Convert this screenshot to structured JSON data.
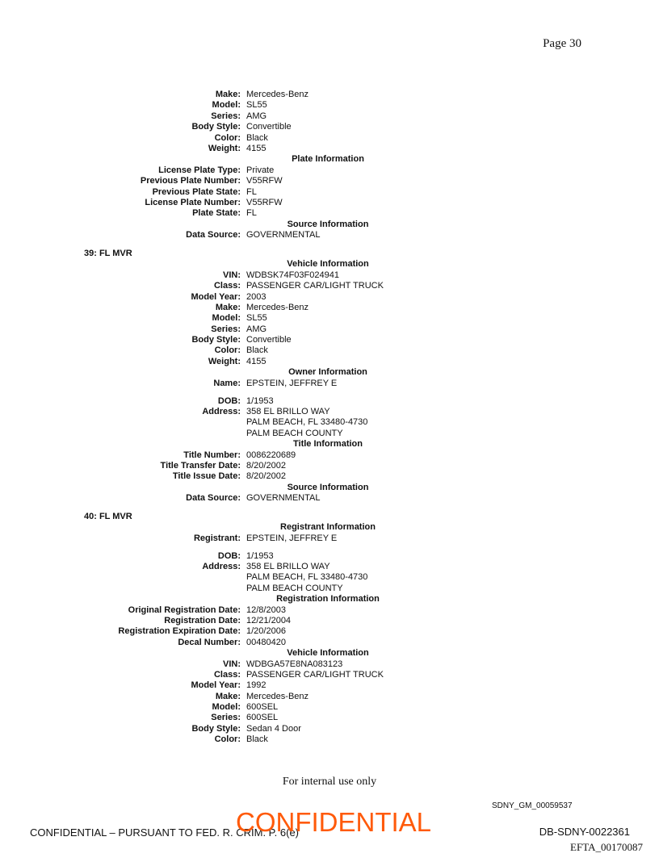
{
  "page_number": "Page 30",
  "lines": [
    {
      "t": "row",
      "label": "Make:",
      "value": "Mercedes-Benz"
    },
    {
      "t": "row",
      "label": "Model:",
      "value": "SL55"
    },
    {
      "t": "row",
      "label": "Series:",
      "value": "AMG"
    },
    {
      "t": "row",
      "label": "Body Style:",
      "value": "Convertible"
    },
    {
      "t": "row",
      "label": "Color:",
      "value": "Black"
    },
    {
      "t": "row",
      "label": "Weight:",
      "value": "4155"
    },
    {
      "t": "hdr",
      "text": "Plate Information"
    },
    {
      "t": "row",
      "label": "License Plate Type:",
      "value": "Private"
    },
    {
      "t": "row",
      "label": "Previous Plate Number:",
      "value": "V55RFW"
    },
    {
      "t": "row",
      "label": "Previous Plate State:",
      "value": "FL"
    },
    {
      "t": "row",
      "label": "License Plate Number:",
      "value": "V55RFW"
    },
    {
      "t": "row",
      "label": "Plate State:",
      "value": "FL"
    },
    {
      "t": "hdr",
      "text": "Source Information"
    },
    {
      "t": "row",
      "label": "Data Source:",
      "value": "GOVERNMENTAL"
    },
    {
      "t": "gap"
    },
    {
      "t": "sec",
      "text": "39: FL MVR"
    },
    {
      "t": "hdr",
      "text": "Vehicle Information"
    },
    {
      "t": "row",
      "label": "VIN:",
      "value": "WDBSK74F03F024941"
    },
    {
      "t": "row",
      "label": "Class:",
      "value": "PASSENGER CAR/LIGHT TRUCK"
    },
    {
      "t": "row",
      "label": "Model Year:",
      "value": "2003"
    },
    {
      "t": "row",
      "label": "Make:",
      "value": "Mercedes-Benz"
    },
    {
      "t": "row",
      "label": "Model:",
      "value": "SL55"
    },
    {
      "t": "row",
      "label": "Series:",
      "value": "AMG"
    },
    {
      "t": "row",
      "label": "Body Style:",
      "value": "Convertible"
    },
    {
      "t": "row",
      "label": "Color:",
      "value": "Black"
    },
    {
      "t": "row",
      "label": "Weight:",
      "value": "4155"
    },
    {
      "t": "hdr",
      "text": "Owner Information"
    },
    {
      "t": "row",
      "label": "Name:",
      "value": "EPSTEIN, JEFFREY E"
    },
    {
      "t": "gap2"
    },
    {
      "t": "row",
      "label": "DOB:",
      "value": "1/1953"
    },
    {
      "t": "row",
      "label": "Address:",
      "value": "358 EL BRILLO WAY"
    },
    {
      "t": "row",
      "label": "",
      "value": "PALM BEACH, FL 33480-4730"
    },
    {
      "t": "row",
      "label": "",
      "value": "PALM BEACH COUNTY"
    },
    {
      "t": "hdr",
      "text": "Title Information"
    },
    {
      "t": "row",
      "label": "Title Number:",
      "value": "0086220689"
    },
    {
      "t": "row",
      "label": "Title Transfer Date:",
      "value": "8/20/2002"
    },
    {
      "t": "row",
      "label": "Title Issue Date:",
      "value": "8/20/2002"
    },
    {
      "t": "hdr",
      "text": "Source Information"
    },
    {
      "t": "row",
      "label": "Data Source:",
      "value": "GOVERNMENTAL"
    },
    {
      "t": "gap"
    },
    {
      "t": "sec",
      "text": "40: FL MVR"
    },
    {
      "t": "hdr",
      "text": "Registrant Information"
    },
    {
      "t": "row",
      "label": "Registrant:",
      "value": "EPSTEIN, JEFFREY E"
    },
    {
      "t": "gap2"
    },
    {
      "t": "row",
      "label": "DOB:",
      "value": "1/1953"
    },
    {
      "t": "row",
      "label": "Address:",
      "value": "358 EL BRILLO WAY"
    },
    {
      "t": "row",
      "label": "",
      "value": "PALM BEACH, FL 33480-4730"
    },
    {
      "t": "row",
      "label": "",
      "value": "PALM BEACH COUNTY"
    },
    {
      "t": "hdr",
      "text": "Registration Information"
    },
    {
      "t": "row",
      "label": "Original Registration Date:",
      "value": "12/8/2003"
    },
    {
      "t": "row",
      "label": "Registration Date:",
      "value": "12/21/2004"
    },
    {
      "t": "row",
      "label": "Registration Expiration Date:",
      "value": "1/20/2006"
    },
    {
      "t": "row",
      "label": "Decal Number:",
      "value": "00480420"
    },
    {
      "t": "hdr",
      "text": "Vehicle Information"
    },
    {
      "t": "row",
      "label": "VIN:",
      "value": "WDBGA57E8NA083123"
    },
    {
      "t": "row",
      "label": "Class:",
      "value": "PASSENGER CAR/LIGHT TRUCK"
    },
    {
      "t": "row",
      "label": "Model Year:",
      "value": "1992"
    },
    {
      "t": "row",
      "label": "Make:",
      "value": "Mercedes-Benz"
    },
    {
      "t": "row",
      "label": "Model:",
      "value": "600SEL"
    },
    {
      "t": "row",
      "label": "Series:",
      "value": "600SEL"
    },
    {
      "t": "row",
      "label": "Body Style:",
      "value": "Sedan 4 Door"
    },
    {
      "t": "row",
      "label": "Color:",
      "value": "Black"
    }
  ],
  "footer": {
    "note": "For internal use only",
    "bates_gm": "SDNY_GM_00059537",
    "confidential_notice": "CONFIDENTIAL – PURSUANT TO FED. R. CRIM. P. 6(e)",
    "stamp": "CONFIDENTIAL",
    "stamp_color": "#ff5a0a",
    "bates_db": "DB-SDNY-0022361",
    "efta": "EFTA_00170087"
  }
}
